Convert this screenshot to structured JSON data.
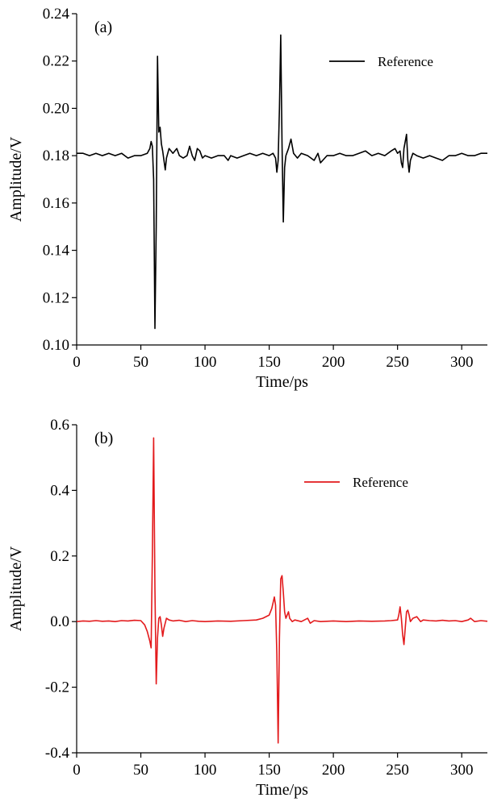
{
  "chart_data": [
    {
      "type": "line",
      "panel_label": "(a)",
      "xlabel": "Time/ps",
      "ylabel": "Amplitude/V",
      "xlim": [
        0,
        320
      ],
      "ylim": [
        0.1,
        0.24
      ],
      "xticks": [
        0,
        50,
        100,
        150,
        200,
        250,
        300
      ],
      "yticks": [
        0.1,
        0.12,
        0.14,
        0.16,
        0.18,
        0.2,
        0.22,
        0.24
      ],
      "ytick_labels": [
        "0.10",
        "0.12",
        "0.14",
        "0.16",
        "0.18",
        "0.20",
        "0.22",
        "0.24"
      ],
      "grid": false,
      "legend_position": "top-right",
      "series": [
        {
          "name": "Reference",
          "color": "#000000",
          "x": [
            0,
            5,
            10,
            15,
            20,
            25,
            30,
            35,
            40,
            45,
            50,
            55,
            57,
            58,
            59,
            60,
            61,
            62,
            63,
            64,
            65,
            66,
            67,
            68,
            69,
            70,
            72,
            75,
            78,
            80,
            83,
            86,
            88,
            90,
            92,
            94,
            96,
            98,
            100,
            105,
            110,
            115,
            118,
            120,
            125,
            130,
            135,
            140,
            145,
            150,
            153,
            155,
            156,
            157,
            158,
            159,
            160,
            161,
            162,
            163,
            165,
            167,
            169,
            172,
            175,
            180,
            185,
            188,
            190,
            195,
            200,
            205,
            210,
            215,
            220,
            225,
            230,
            235,
            240,
            245,
            248,
            250,
            252,
            253,
            254,
            255,
            256,
            257,
            258,
            259,
            260,
            262,
            265,
            270,
            275,
            280,
            285,
            290,
            295,
            300,
            305,
            310,
            315,
            320
          ],
          "y": [
            0.181,
            0.181,
            0.18,
            0.181,
            0.18,
            0.181,
            0.18,
            0.181,
            0.179,
            0.18,
            0.18,
            0.181,
            0.183,
            0.186,
            0.184,
            0.17,
            0.107,
            0.15,
            0.222,
            0.19,
            0.192,
            0.185,
            0.182,
            0.178,
            0.174,
            0.179,
            0.183,
            0.181,
            0.183,
            0.18,
            0.179,
            0.18,
            0.184,
            0.18,
            0.178,
            0.183,
            0.182,
            0.179,
            0.18,
            0.179,
            0.18,
            0.18,
            0.178,
            0.18,
            0.179,
            0.18,
            0.181,
            0.18,
            0.181,
            0.18,
            0.181,
            0.179,
            0.173,
            0.178,
            0.2,
            0.231,
            0.185,
            0.152,
            0.175,
            0.18,
            0.183,
            0.187,
            0.181,
            0.179,
            0.181,
            0.18,
            0.178,
            0.181,
            0.177,
            0.18,
            0.18,
            0.181,
            0.18,
            0.18,
            0.181,
            0.182,
            0.18,
            0.181,
            0.18,
            0.182,
            0.183,
            0.181,
            0.182,
            0.177,
            0.175,
            0.183,
            0.186,
            0.189,
            0.178,
            0.173,
            0.178,
            0.181,
            0.18,
            0.179,
            0.18,
            0.179,
            0.178,
            0.18,
            0.18,
            0.181,
            0.18,
            0.18,
            0.181,
            0.181
          ]
        }
      ]
    },
    {
      "type": "line",
      "panel_label": "(b)",
      "xlabel": "Time/ps",
      "ylabel": "Amplitude/V",
      "xlim": [
        0,
        320
      ],
      "ylim": [
        -0.4,
        0.6
      ],
      "xticks": [
        0,
        50,
        100,
        150,
        200,
        250,
        300
      ],
      "yticks": [
        -0.4,
        -0.2,
        0.0,
        0.2,
        0.4,
        0.6
      ],
      "ytick_labels": [
        "-0.4",
        "-0.2",
        "0.0",
        "0.2",
        "0.4",
        "0.6"
      ],
      "grid": false,
      "legend_position": "top-right",
      "series": [
        {
          "name": "Reference",
          "color": "#e31a1c",
          "x": [
            0,
            5,
            10,
            15,
            20,
            25,
            30,
            35,
            40,
            45,
            50,
            53,
            55,
            57,
            58,
            59,
            60,
            61,
            62,
            63,
            64,
            65,
            66,
            67,
            68,
            70,
            72,
            75,
            80,
            85,
            90,
            95,
            100,
            110,
            120,
            130,
            140,
            145,
            150,
            152,
            154,
            155,
            156,
            157,
            158,
            159,
            160,
            161,
            162,
            163,
            164,
            165,
            166,
            168,
            170,
            175,
            180,
            182,
            185,
            190,
            200,
            210,
            220,
            230,
            240,
            245,
            250,
            251,
            252,
            253,
            254,
            255,
            256,
            257,
            258,
            259,
            260,
            262,
            265,
            268,
            270,
            275,
            280,
            285,
            290,
            295,
            300,
            305,
            307,
            310,
            315,
            320
          ],
          "y": [
            0.0,
            0.002,
            0.001,
            0.003,
            0.001,
            0.002,
            0.0,
            0.003,
            0.002,
            0.004,
            0.003,
            -0.01,
            -0.03,
            -0.06,
            -0.08,
            0.2,
            0.56,
            0.1,
            -0.19,
            -0.05,
            0.01,
            0.015,
            -0.01,
            -0.045,
            -0.02,
            0.01,
            0.005,
            0.002,
            0.004,
            0.0,
            0.003,
            0.001,
            0.0,
            0.002,
            0.001,
            0.003,
            0.005,
            0.01,
            0.02,
            0.04,
            0.075,
            0.05,
            -0.1,
            -0.37,
            -0.05,
            0.13,
            0.14,
            0.09,
            0.03,
            0.01,
            0.02,
            0.03,
            0.01,
            0.0,
            0.005,
            0.0,
            0.01,
            -0.005,
            0.003,
            0.0,
            0.002,
            0.0,
            0.002,
            0.001,
            0.002,
            0.003,
            0.005,
            0.02,
            0.045,
            0.01,
            -0.04,
            -0.07,
            -0.02,
            0.03,
            0.035,
            0.02,
            0.0,
            0.01,
            0.015,
            0.0,
            0.005,
            0.003,
            0.002,
            0.004,
            0.002,
            0.003,
            0.0,
            0.005,
            0.01,
            0.0,
            0.003,
            0.001
          ]
        }
      ]
    }
  ]
}
